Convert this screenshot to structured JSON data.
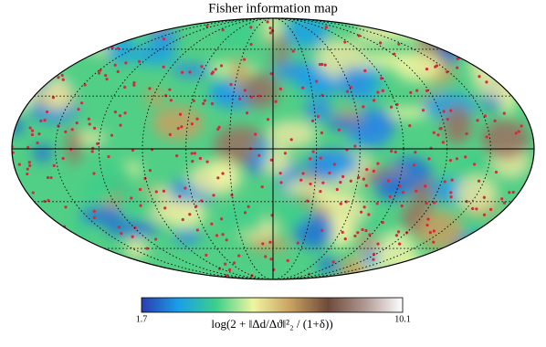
{
  "title": "Fisher information map",
  "colorbar": {
    "min": 1.7,
    "max": 10.1,
    "label": "log(2 + ‖Δd/Δϑ‖²₂ / (1+δ))",
    "colors": [
      "#2a3cb0",
      "#1aa0e8",
      "#3ccf8a",
      "#f0f5a0",
      "#c8a060",
      "#6e4a3a",
      "#b09a94",
      "#ffffff"
    ]
  }
}
